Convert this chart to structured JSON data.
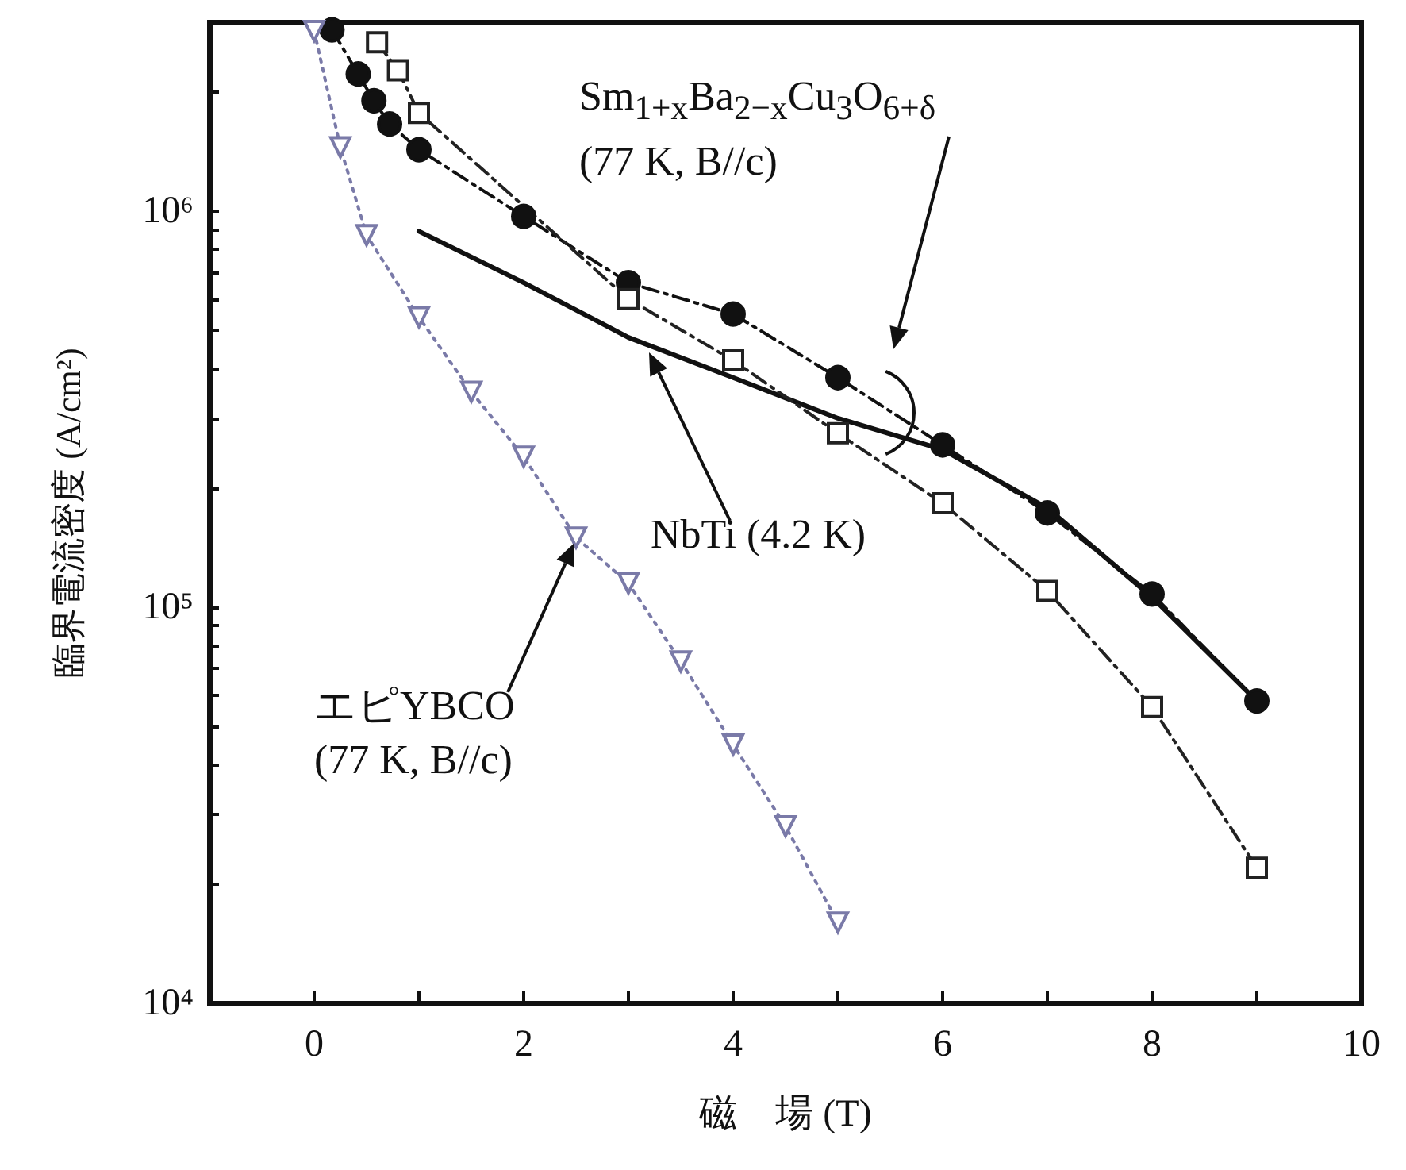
{
  "chart_data": {
    "type": "line",
    "xlabel": "磁　場 (T)",
    "ylabel": "臨界電流密度 (A/cm²)",
    "xlim": [
      -1,
      10
    ],
    "xticks": [
      0,
      {
        "value": 1,
        "label": null
      },
      2,
      {
        "value": 3,
        "label": null
      },
      4,
      {
        "value": 5,
        "label": null
      },
      6,
      {
        "value": 7,
        "label": null
      },
      8,
      {
        "value": 9,
        "label": null
      },
      10
    ],
    "ylim": [
      10000,
      3000000
    ],
    "log": "y",
    "yticks": [
      {
        "value": 10000,
        "label": "10⁴"
      },
      {
        "value": 20000,
        "label": null
      },
      {
        "value": 30000,
        "label": null
      },
      {
        "value": 40000,
        "label": null
      },
      {
        "value": 50000,
        "label": null
      },
      {
        "value": 60000,
        "label": null
      },
      {
        "value": 70000,
        "label": null
      },
      {
        "value": 80000,
        "label": null
      },
      {
        "value": 90000,
        "label": null
      },
      {
        "value": 100000,
        "label": "10⁵"
      },
      {
        "value": 200000,
        "label": null
      },
      {
        "value": 300000,
        "label": null
      },
      {
        "value": 400000,
        "label": null
      },
      {
        "value": 500000,
        "label": null
      },
      {
        "value": 600000,
        "label": null
      },
      {
        "value": 700000,
        "label": null
      },
      {
        "value": 800000,
        "label": null
      },
      {
        "value": 900000,
        "label": null
      },
      {
        "value": 1000000,
        "label": "10⁶"
      },
      {
        "value": 2000000,
        "label": null
      },
      {
        "value": 3000000,
        "label": null
      }
    ],
    "grid": false,
    "series": [
      {
        "color": "#111111",
        "marker": "circle",
        "line_style": "dashed",
        "x": [
          0.17,
          0.42,
          0.57,
          0.72,
          1.0,
          2,
          3,
          4,
          5,
          6,
          7,
          8,
          9
        ],
        "values": [
          2870000,
          2220000,
          1900000,
          1660000,
          1430000,
          970000,
          660000,
          550000,
          380000,
          257000,
          173000,
          108000,
          58000
        ]
      },
      {
        "color": "#222222",
        "marker": "square",
        "line_style": "dashed",
        "x": [
          0.6,
          0.8,
          1.0,
          3,
          4,
          5,
          6,
          7,
          8,
          9
        ],
        "values": [
          2670000,
          2270000,
          1770000,
          600000,
          420000,
          275000,
          183000,
          110000,
          56000,
          22000
        ]
      },
      {
        "color": "#111111",
        "marker": "none",
        "line_style": "solid",
        "x": [
          1,
          2,
          3,
          4,
          5,
          6,
          7,
          8,
          9
        ],
        "values": [
          890000,
          660000,
          480000,
          380000,
          300000,
          250000,
          178000,
          106000,
          58000
        ]
      },
      {
        "color": "#7a7aa8",
        "marker": "triangle",
        "line_style": "dotted",
        "x": [
          0,
          0.25,
          0.5,
          1.0,
          1.5,
          2.0,
          2.5,
          3.0,
          3.5,
          4.0,
          4.5,
          5.0
        ],
        "values": [
          2850000,
          1450000,
          870000,
          540000,
          350000,
          240000,
          150000,
          115000,
          73000,
          45000,
          28000,
          16000
        ]
      }
    ],
    "annotations": [
      "Sm$_{1+x}$Ba$_{2−x}$Cu$_{3}$O$_{6+δ}$\n(77 K, B//c)",
      "NbTi (4.2 K)",
      "エピYBCO\n(77 K, B//c)"
    ]
  }
}
